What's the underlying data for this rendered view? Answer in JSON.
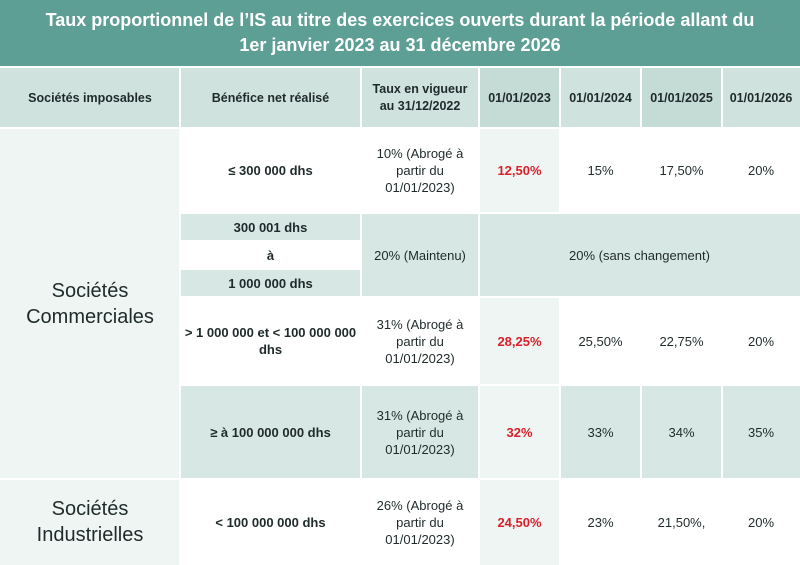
{
  "title": {
    "line1": "Taux proportionnel de l’IS au titre des exercices ouverts durant la période allant du",
    "line2": "1er janvier 2023 au 31 décembre 2026"
  },
  "headers": {
    "societes": "Sociétés imposables",
    "benefice": "Bénéfice net réalisé",
    "taux_line1": "Taux en vigueur",
    "taux_line2": "au 31/12/2022",
    "y2023": "01/01/2023",
    "y2024": "01/01/2024",
    "y2025": "01/01/2025",
    "y2026": "01/01/2026"
  },
  "groups": {
    "commerciales_line1": "Sociétés",
    "commerciales_line2": "Commerciales",
    "industrielles_line1": "Sociétés",
    "industrielles_line2": "Industrielles"
  },
  "rows": {
    "r1": {
      "benefice": "≤ 300 000 dhs",
      "taux_l1": "10% (Abrogé à",
      "taux_l2": "partir du",
      "taux_l3": "01/01/2023)",
      "y2023": "12,50%",
      "y2024": "15%",
      "y2025": "17,50%",
      "y2026": "20%"
    },
    "r2": {
      "benefice_from": "300 001 dhs",
      "benefice_sep": "à",
      "benefice_to": "1 000 000 dhs",
      "taux": "20% (Maintenu)",
      "merged": "20% (sans changement)"
    },
    "r3": {
      "benefice_l1": "> 1 000 000 et < 100 000 000",
      "benefice_l2": "dhs",
      "taux_l1": "31% (Abrogé à",
      "taux_l2": "partir du",
      "taux_l3": "01/01/2023)",
      "y2023": "28,25%",
      "y2024": "25,50%",
      "y2025": "22,75%",
      "y2026": "20%"
    },
    "r4": {
      "benefice": "≥ à 100 000 000 dhs",
      "taux_l1": "31% (Abrogé à",
      "taux_l2": "partir du",
      "taux_l3": "01/01/2023)",
      "y2023": "32%",
      "y2024": "33%",
      "y2025": "34%",
      "y2026": "35%"
    },
    "r5": {
      "benefice": "< 100 000 000 dhs",
      "taux_l1": "26% (Abrogé à",
      "taux_l2": "partir du",
      "taux_l3": "01/01/2023)",
      "y2023": "24,50%",
      "y2024": "23%",
      "y2025": "21,50%,",
      "y2026": "20%"
    }
  },
  "colors": {
    "title_bg": "#5e9f95",
    "header_bg": "#cfe2de",
    "highlight_red": "#d8202a"
  }
}
